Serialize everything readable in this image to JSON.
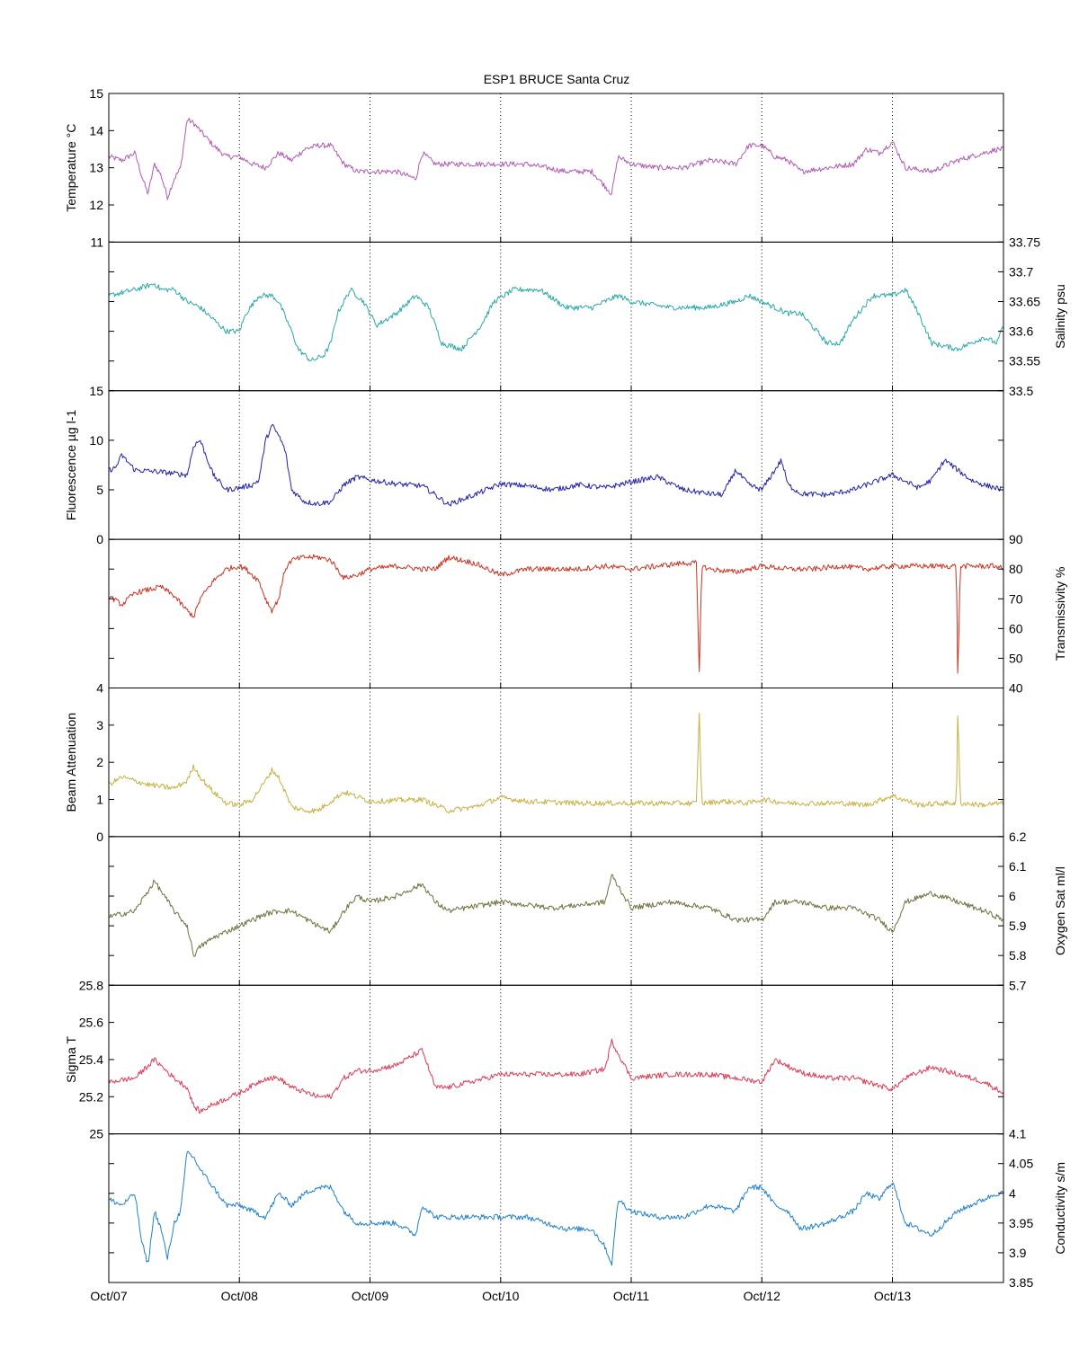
{
  "chart_data": {
    "type": "line",
    "title": "ESP1 BRUCE Santa Cruz",
    "x_ticks": [
      "Oct/07",
      "Oct/08",
      "Oct/09",
      "Oct/10",
      "Oct/11",
      "Oct/12",
      "Oct/13"
    ],
    "x_range_days": [
      0,
      6.85
    ],
    "grid": "vertical dotted at each day",
    "panels": [
      {
        "name": "temperature",
        "label": "Temperature °C",
        "label_side": "left",
        "color": "#b05ab5",
        "ylim": [
          11,
          15
        ],
        "ticks": [
          11,
          12,
          13,
          14,
          15
        ],
        "tick_labels": [
          "11",
          "12",
          "13",
          "14",
          "15"
        ],
        "x": [
          0,
          0.1,
          0.2,
          0.25,
          0.3,
          0.35,
          0.4,
          0.45,
          0.5,
          0.55,
          0.6,
          0.65,
          0.7,
          0.8,
          0.9,
          1.0,
          1.1,
          1.2,
          1.3,
          1.4,
          1.5,
          1.6,
          1.7,
          1.8,
          1.9,
          2.0,
          2.2,
          2.35,
          2.4,
          2.5,
          2.7,
          2.9,
          3.2,
          3.5,
          3.7,
          3.8,
          3.85,
          3.9,
          4.0,
          4.2,
          4.4,
          4.6,
          4.8,
          4.9,
          5.0,
          5.1,
          5.2,
          5.3,
          5.5,
          5.7,
          5.8,
          5.9,
          6.0,
          6.1,
          6.3,
          6.5,
          6.6,
          6.8,
          6.85
        ],
        "y": [
          13.3,
          13.2,
          13.4,
          12.8,
          12.3,
          13.1,
          12.8,
          12.2,
          12.7,
          13.0,
          14.3,
          14.2,
          14.0,
          13.6,
          13.3,
          13.3,
          13.1,
          13.0,
          13.4,
          13.2,
          13.5,
          13.6,
          13.6,
          13.1,
          12.9,
          12.9,
          12.9,
          12.7,
          13.4,
          13.1,
          13.1,
          13.1,
          13.1,
          12.9,
          12.9,
          12.5,
          12.3,
          13.3,
          13.1,
          13.0,
          13.0,
          13.2,
          13.1,
          13.6,
          13.6,
          13.3,
          13.2,
          12.9,
          13.0,
          13.1,
          13.5,
          13.4,
          13.7,
          13.0,
          12.9,
          13.2,
          13.3,
          13.5,
          13.5
        ]
      },
      {
        "name": "salinity",
        "label": "Salinity psu",
        "label_side": "right",
        "color": "#2aa8a8",
        "ylim": [
          33.5,
          33.75
        ],
        "ticks": [
          33.5,
          33.55,
          33.6,
          33.65,
          33.7,
          33.75
        ],
        "tick_labels": [
          "33.5",
          "33.55",
          "33.6",
          "33.65",
          "33.7",
          "33.75"
        ],
        "x": [
          0,
          0.2,
          0.35,
          0.4,
          0.5,
          0.6,
          0.7,
          0.8,
          0.9,
          1.0,
          1.05,
          1.15,
          1.25,
          1.3,
          1.4,
          1.45,
          1.55,
          1.65,
          1.7,
          1.75,
          1.85,
          1.95,
          2.05,
          2.2,
          2.35,
          2.45,
          2.55,
          2.7,
          2.85,
          2.95,
          3.1,
          3.3,
          3.5,
          3.7,
          3.9,
          4.0,
          4.3,
          4.6,
          4.8,
          4.9,
          5.0,
          5.2,
          5.3,
          5.5,
          5.6,
          5.7,
          5.85,
          6.0,
          6.1,
          6.2,
          6.3,
          6.5,
          6.7,
          6.8,
          6.85
        ],
        "y": [
          33.66,
          33.67,
          33.68,
          33.67,
          33.67,
          33.65,
          33.64,
          33.62,
          33.6,
          33.6,
          33.63,
          33.66,
          33.66,
          33.65,
          33.6,
          33.57,
          33.55,
          33.56,
          33.58,
          33.63,
          33.67,
          33.65,
          33.61,
          33.63,
          33.66,
          33.64,
          33.58,
          33.57,
          33.61,
          33.65,
          33.67,
          33.67,
          33.64,
          33.64,
          33.66,
          33.65,
          33.64,
          33.64,
          33.65,
          33.66,
          33.65,
          33.63,
          33.63,
          33.58,
          33.58,
          33.62,
          33.66,
          33.66,
          33.67,
          33.63,
          33.58,
          33.57,
          33.59,
          33.58,
          33.61
        ]
      },
      {
        "name": "fluorescence",
        "label": "Fluorescence µg l-1",
        "label_side": "left",
        "color": "#2222aa",
        "ylim": [
          0,
          15
        ],
        "ticks": [
          0,
          5,
          10,
          15
        ],
        "tick_labels": [
          "0",
          "5",
          "10",
          "15"
        ],
        "x": [
          0,
          0.05,
          0.1,
          0.2,
          0.4,
          0.6,
          0.65,
          0.7,
          0.8,
          0.9,
          1.0,
          1.1,
          1.15,
          1.2,
          1.25,
          1.3,
          1.35,
          1.4,
          1.5,
          1.6,
          1.7,
          1.8,
          1.9,
          2.0,
          2.2,
          2.4,
          2.5,
          2.6,
          2.8,
          3.0,
          3.2,
          3.4,
          3.6,
          3.8,
          4.0,
          4.2,
          4.4,
          4.6,
          4.7,
          4.8,
          4.9,
          5.0,
          5.15,
          5.2,
          5.3,
          5.5,
          5.7,
          5.8,
          6.0,
          6.2,
          6.3,
          6.4,
          6.6,
          6.7,
          6.85
        ],
        "y": [
          7.0,
          7.2,
          8.5,
          7.0,
          6.8,
          6.5,
          9.5,
          10.0,
          6.5,
          5.0,
          5.2,
          5.5,
          6.0,
          10.0,
          11.5,
          10.5,
          9.0,
          5.0,
          3.8,
          3.6,
          3.8,
          5.5,
          6.3,
          6.0,
          5.6,
          5.4,
          4.5,
          3.5,
          4.5,
          5.6,
          5.4,
          5.0,
          5.5,
          5.2,
          5.8,
          6.3,
          5.0,
          4.6,
          4.5,
          7.0,
          5.5,
          5.0,
          8.0,
          5.5,
          4.6,
          4.5,
          5.0,
          5.5,
          6.5,
          5.2,
          6.0,
          8.0,
          6.0,
          5.5,
          5.0
        ]
      },
      {
        "name": "transmissivity",
        "label": "Transmissivity %",
        "label_side": "right",
        "color": "#cc3322",
        "ylim": [
          40,
          90
        ],
        "ticks": [
          40,
          50,
          60,
          70,
          80,
          90
        ],
        "tick_labels": [
          "40",
          "50",
          "60",
          "70",
          "80",
          "90"
        ],
        "x": [
          0,
          0.1,
          0.2,
          0.4,
          0.5,
          0.6,
          0.65,
          0.7,
          0.8,
          0.9,
          1.0,
          1.05,
          1.15,
          1.2,
          1.25,
          1.3,
          1.35,
          1.4,
          1.5,
          1.6,
          1.7,
          1.8,
          1.9,
          2.0,
          2.2,
          2.4,
          2.5,
          2.6,
          2.8,
          3.0,
          3.2,
          3.4,
          3.6,
          3.8,
          4.0,
          4.2,
          4.4,
          4.5,
          4.52,
          4.54,
          4.6,
          4.8,
          4.9,
          5.0,
          5.2,
          5.4,
          5.6,
          5.8,
          6.0,
          6.2,
          6.4,
          6.49,
          6.5,
          6.52,
          6.6,
          6.8,
          6.85
        ],
        "y": [
          71,
          68,
          72,
          74,
          71,
          66,
          64,
          70,
          76,
          80,
          81,
          80,
          76,
          70,
          66,
          70,
          80,
          83,
          84,
          84,
          83,
          77,
          78,
          80,
          81,
          80,
          80,
          84,
          82,
          78,
          80,
          80,
          80,
          81,
          80,
          81,
          82,
          82,
          43,
          81,
          80,
          79,
          80,
          81,
          80,
          80,
          81,
          80,
          81,
          81,
          81,
          81,
          44,
          81,
          81,
          81,
          80
        ]
      },
      {
        "name": "beam-attenuation",
        "label": "Beam Attenuation",
        "label_side": "left",
        "color": "#c8b040",
        "ylim": [
          0,
          4
        ],
        "ticks": [
          0,
          1,
          2,
          3,
          4
        ],
        "tick_labels": [
          "0",
          "1",
          "2",
          "3",
          "4"
        ],
        "x": [
          0,
          0.1,
          0.3,
          0.5,
          0.6,
          0.65,
          0.7,
          0.8,
          0.9,
          1.0,
          1.1,
          1.2,
          1.25,
          1.3,
          1.4,
          1.5,
          1.6,
          1.8,
          2.0,
          2.4,
          2.6,
          2.8,
          3.0,
          3.2,
          3.6,
          4.0,
          4.4,
          4.5,
          4.52,
          4.54,
          4.7,
          4.9,
          5.0,
          5.2,
          5.4,
          5.6,
          5.8,
          6.0,
          6.2,
          6.4,
          6.49,
          6.5,
          6.52,
          6.7,
          6.85
        ],
        "y": [
          1.4,
          1.6,
          1.4,
          1.3,
          1.5,
          1.9,
          1.6,
          1.2,
          0.9,
          0.85,
          1.0,
          1.5,
          1.8,
          1.6,
          0.8,
          0.7,
          0.7,
          1.2,
          0.95,
          1.0,
          0.7,
          0.8,
          1.05,
          0.95,
          0.9,
          0.9,
          0.9,
          0.9,
          3.4,
          0.9,
          0.95,
          0.9,
          1.0,
          0.9,
          0.9,
          0.9,
          0.85,
          1.1,
          0.85,
          0.9,
          0.9,
          3.3,
          0.9,
          0.85,
          0.9
        ]
      },
      {
        "name": "oxygen",
        "label": "Oxygen Sat ml/l",
        "label_side": "right",
        "color": "#707040",
        "ylim": [
          5.7,
          6.2
        ],
        "ticks": [
          5.7,
          5.8,
          5.9,
          6.0,
          6.1,
          6.2
        ],
        "tick_labels": [
          "5.7",
          "5.8",
          "5.9",
          "6",
          "6.1",
          "6.2"
        ],
        "x": [
          0,
          0.2,
          0.35,
          0.5,
          0.6,
          0.65,
          0.7,
          0.8,
          1.0,
          1.2,
          1.3,
          1.4,
          1.6,
          1.7,
          1.8,
          1.9,
          2.0,
          2.2,
          2.4,
          2.5,
          2.6,
          3.0,
          3.4,
          3.6,
          3.8,
          3.85,
          4.0,
          4.3,
          4.6,
          4.8,
          5.0,
          5.1,
          5.3,
          5.5,
          5.7,
          5.9,
          6.0,
          6.1,
          6.3,
          6.5,
          6.7,
          6.85
        ],
        "y": [
          5.93,
          5.95,
          6.05,
          5.95,
          5.9,
          5.8,
          5.83,
          5.86,
          5.9,
          5.94,
          5.95,
          5.95,
          5.9,
          5.88,
          5.95,
          6.0,
          5.98,
          6.0,
          6.04,
          5.98,
          5.95,
          5.98,
          5.96,
          5.97,
          5.98,
          6.07,
          5.96,
          5.98,
          5.96,
          5.92,
          5.92,
          5.98,
          5.98,
          5.96,
          5.96,
          5.92,
          5.88,
          5.98,
          6.01,
          5.98,
          5.95,
          5.92
        ]
      },
      {
        "name": "sigma-t",
        "label": "Sigma T",
        "label_side": "left",
        "color": "#dd3a55",
        "ylim": [
          25.0,
          25.8
        ],
        "ticks": [
          25.0,
          25.2,
          25.4,
          25.6,
          25.8
        ],
        "tick_labels": [
          "25",
          "25.2",
          "25.4",
          "25.6",
          "25.8"
        ],
        "x": [
          0,
          0.2,
          0.35,
          0.5,
          0.6,
          0.65,
          0.7,
          0.8,
          1.0,
          1.2,
          1.3,
          1.4,
          1.6,
          1.7,
          1.8,
          1.9,
          2.0,
          2.2,
          2.4,
          2.5,
          2.6,
          3.0,
          3.4,
          3.6,
          3.8,
          3.85,
          4.0,
          4.3,
          4.6,
          4.8,
          5.0,
          5.1,
          5.3,
          5.5,
          5.7,
          5.9,
          6.0,
          6.1,
          6.3,
          6.5,
          6.7,
          6.85
        ],
        "y": [
          25.28,
          25.3,
          25.4,
          25.3,
          25.25,
          25.15,
          25.12,
          25.16,
          25.22,
          25.3,
          25.3,
          25.25,
          25.2,
          25.2,
          25.3,
          25.34,
          25.34,
          25.37,
          25.45,
          25.25,
          25.25,
          25.32,
          25.32,
          25.32,
          25.35,
          25.5,
          25.3,
          25.32,
          25.32,
          25.3,
          25.28,
          25.4,
          25.33,
          25.3,
          25.3,
          25.26,
          25.24,
          25.3,
          25.36,
          25.32,
          25.28,
          25.22
        ]
      },
      {
        "name": "conductivity",
        "label": "Conductivity s/m",
        "label_side": "right",
        "color": "#2080d0",
        "ylim": [
          3.85,
          4.1
        ],
        "ticks": [
          3.85,
          3.9,
          3.95,
          4.0,
          4.05,
          4.1
        ],
        "tick_labels": [
          "3.85",
          "3.9",
          "3.95",
          "4",
          "4.05",
          "4.1"
        ],
        "x": [
          0,
          0.1,
          0.2,
          0.25,
          0.3,
          0.35,
          0.4,
          0.45,
          0.5,
          0.55,
          0.6,
          0.65,
          0.7,
          0.8,
          0.9,
          1.0,
          1.1,
          1.2,
          1.3,
          1.4,
          1.5,
          1.6,
          1.7,
          1.8,
          1.9,
          2.0,
          2.2,
          2.35,
          2.4,
          2.5,
          2.7,
          2.9,
          3.2,
          3.5,
          3.7,
          3.8,
          3.85,
          3.9,
          4.0,
          4.2,
          4.4,
          4.6,
          4.8,
          4.9,
          5.0,
          5.1,
          5.2,
          5.3,
          5.5,
          5.7,
          5.8,
          5.9,
          6.0,
          6.1,
          6.3,
          6.5,
          6.6,
          6.8,
          6.85
        ],
        "y": [
          3.99,
          3.98,
          4.0,
          3.92,
          3.88,
          3.97,
          3.94,
          3.89,
          3.95,
          3.97,
          4.07,
          4.06,
          4.04,
          4.01,
          3.98,
          3.98,
          3.97,
          3.96,
          4.0,
          3.98,
          4.0,
          4.01,
          4.01,
          3.97,
          3.95,
          3.95,
          3.95,
          3.93,
          3.98,
          3.96,
          3.96,
          3.96,
          3.96,
          3.94,
          3.94,
          3.91,
          3.88,
          3.99,
          3.97,
          3.96,
          3.96,
          3.98,
          3.97,
          4.01,
          4.01,
          3.98,
          3.97,
          3.94,
          3.95,
          3.97,
          4.0,
          3.99,
          4.02,
          3.95,
          3.93,
          3.97,
          3.98,
          4.0,
          4.0
        ]
      }
    ]
  }
}
